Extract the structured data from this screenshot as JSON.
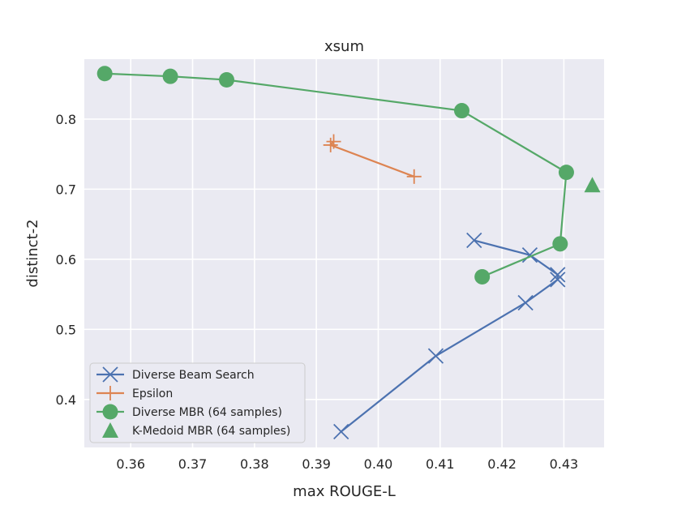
{
  "chart_data": {
    "type": "line",
    "title": "xsum",
    "xlabel": "max ROUGE-L",
    "ylabel": "distinct-2",
    "xlim": [
      0.3525,
      0.4365
    ],
    "ylim": [
      0.3315,
      0.8855
    ],
    "x_ticks": [
      0.36,
      0.37,
      0.38,
      0.39,
      0.4,
      0.41,
      0.42,
      0.43
    ],
    "x_tick_labels": [
      "0.36",
      "0.37",
      "0.38",
      "0.39",
      "0.40",
      "0.41",
      "0.42",
      "0.43"
    ],
    "y_ticks": [
      0.4,
      0.5,
      0.6,
      0.7,
      0.8
    ],
    "y_tick_labels": [
      "0.4",
      "0.5",
      "0.6",
      "0.7",
      "0.8"
    ],
    "grid": true,
    "legend_position": "lower-left",
    "series": [
      {
        "name": "Diverse Beam Search",
        "color": "#4c72b0",
        "marker": "x",
        "line": true,
        "points": [
          {
            "x": 0.4155,
            "y": 0.627
          },
          {
            "x": 0.4245,
            "y": 0.606
          },
          {
            "x": 0.429,
            "y": 0.578
          },
          {
            "x": 0.429,
            "y": 0.571
          },
          {
            "x": 0.4238,
            "y": 0.538
          },
          {
            "x": 0.4093,
            "y": 0.462
          },
          {
            "x": 0.394,
            "y": 0.354
          }
        ]
      },
      {
        "name": "Epsilon",
        "color": "#dd8452",
        "marker": "plus",
        "line": true,
        "points": [
          {
            "x": 0.3928,
            "y": 0.768
          },
          {
            "x": 0.3923,
            "y": 0.763
          },
          {
            "x": 0.4058,
            "y": 0.718
          }
        ]
      },
      {
        "name": "Diverse MBR (64 samples)",
        "color": "#55a868",
        "marker": "circle",
        "line": true,
        "points": [
          {
            "x": 0.3558,
            "y": 0.865
          },
          {
            "x": 0.3664,
            "y": 0.861
          },
          {
            "x": 0.3755,
            "y": 0.856
          },
          {
            "x": 0.4135,
            "y": 0.812
          },
          {
            "x": 0.4304,
            "y": 0.724
          },
          {
            "x": 0.4294,
            "y": 0.622
          },
          {
            "x": 0.4168,
            "y": 0.575
          }
        ]
      },
      {
        "name": "K-Medoid MBR (64 samples)",
        "color": "#55a868",
        "marker": "triangle",
        "line": false,
        "points": [
          {
            "x": 0.4346,
            "y": 0.706
          }
        ]
      }
    ]
  }
}
